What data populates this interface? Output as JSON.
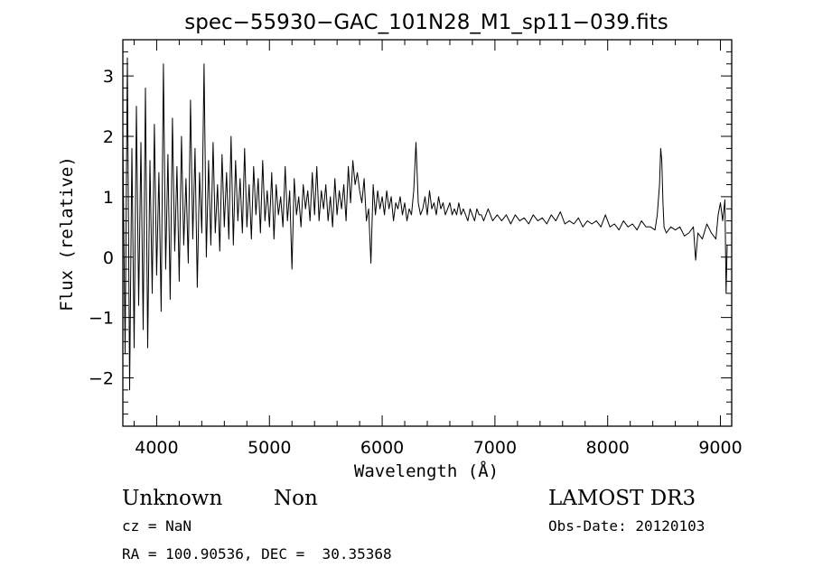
{
  "chart_data": {
    "type": "line",
    "title": "spec−55930−GAC_101N28_M1_sp11−039.fits",
    "xlabel": "Wavelength (Å)",
    "ylabel": "Flux (relative)",
    "xlim": [
      3700,
      9100
    ],
    "ylim": [
      -2.8,
      3.6
    ],
    "x_ticks": [
      4000,
      5000,
      6000,
      7000,
      8000,
      9000
    ],
    "y_ticks": [
      -2,
      -1,
      0,
      1,
      2,
      3
    ],
    "y_tick_labels": [
      "−2",
      "−1",
      "0",
      "1",
      "2",
      "3"
    ],
    "grid": false,
    "series": [
      {
        "name": "flux",
        "x": [
          3700,
          3720,
          3740,
          3760,
          3780,
          3800,
          3820,
          3840,
          3860,
          3880,
          3900,
          3920,
          3940,
          3960,
          3980,
          4000,
          4020,
          4040,
          4060,
          4080,
          4100,
          4120,
          4140,
          4160,
          4180,
          4200,
          4220,
          4240,
          4260,
          4280,
          4300,
          4320,
          4340,
          4360,
          4380,
          4400,
          4420,
          4440,
          4460,
          4480,
          4500,
          4520,
          4540,
          4560,
          4580,
          4600,
          4620,
          4640,
          4660,
          4680,
          4700,
          4720,
          4740,
          4760,
          4780,
          4800,
          4820,
          4840,
          4860,
          4880,
          4900,
          4920,
          4940,
          4960,
          4980,
          5000,
          5020,
          5040,
          5060,
          5080,
          5100,
          5120,
          5140,
          5160,
          5180,
          5200,
          5220,
          5240,
          5260,
          5280,
          5300,
          5320,
          5340,
          5360,
          5380,
          5400,
          5420,
          5440,
          5460,
          5480,
          5500,
          5520,
          5540,
          5560,
          5580,
          5600,
          5620,
          5640,
          5660,
          5680,
          5700,
          5720,
          5740,
          5760,
          5780,
          5800,
          5820,
          5840,
          5860,
          5880,
          5900,
          5920,
          5940,
          5960,
          5980,
          6000,
          6020,
          6040,
          6060,
          6080,
          6100,
          6120,
          6140,
          6160,
          6180,
          6200,
          6220,
          6240,
          6260,
          6280,
          6300,
          6320,
          6340,
          6360,
          6380,
          6400,
          6420,
          6440,
          6460,
          6480,
          6500,
          6520,
          6540,
          6560,
          6580,
          6600,
          6620,
          6640,
          6660,
          6680,
          6700,
          6720,
          6740,
          6760,
          6780,
          6800,
          6820,
          6840,
          6860,
          6880,
          6900,
          6940,
          6980,
          7020,
          7060,
          7100,
          7140,
          7180,
          7220,
          7260,
          7300,
          7340,
          7380,
          7420,
          7460,
          7500,
          7540,
          7580,
          7620,
          7660,
          7700,
          7740,
          7780,
          7820,
          7860,
          7900,
          7940,
          7980,
          8020,
          8060,
          8100,
          8140,
          8180,
          8220,
          8260,
          8300,
          8340,
          8380,
          8420,
          8440,
          8460,
          8470,
          8480,
          8490,
          8500,
          8520,
          8560,
          8600,
          8640,
          8680,
          8720,
          8760,
          8780,
          8800,
          8840,
          8880,
          8920,
          8960,
          8980,
          9000,
          9020,
          9040,
          9050,
          9060
        ],
        "values": [
          2.0,
          -1.6,
          3.3,
          -2.2,
          1.8,
          -1.5,
          2.5,
          -0.8,
          1.9,
          -1.2,
          2.8,
          -1.5,
          1.6,
          -0.6,
          2.2,
          -0.3,
          1.4,
          -0.9,
          3.2,
          -0.2,
          1.7,
          -0.7,
          2.3,
          0.1,
          1.5,
          -0.4,
          2.0,
          0.2,
          1.3,
          -0.1,
          2.6,
          0.3,
          1.8,
          -0.5,
          1.4,
          0.4,
          3.2,
          0.0,
          1.6,
          0.2,
          1.9,
          0.4,
          1.2,
          0.1,
          1.7,
          0.5,
          1.4,
          0.3,
          2.0,
          0.2,
          1.6,
          0.6,
          1.3,
          0.4,
          1.8,
          0.5,
          1.2,
          0.3,
          1.5,
          0.7,
          1.3,
          0.4,
          1.6,
          0.6,
          1.1,
          0.5,
          1.4,
          0.3,
          1.2,
          0.7,
          1.0,
          0.5,
          1.5,
          0.6,
          1.1,
          -0.2,
          1.3,
          0.7,
          1.0,
          0.5,
          1.2,
          0.8,
          1.1,
          0.6,
          1.4,
          0.7,
          1.5,
          0.6,
          1.1,
          0.8,
          1.2,
          0.6,
          1.0,
          0.5,
          1.3,
          0.7,
          1.1,
          0.8,
          1.2,
          0.6,
          1.5,
          0.9,
          1.6,
          1.2,
          1.4,
          1.1,
          0.9,
          1.3,
          0.6,
          0.8,
          -0.1,
          1.2,
          0.7,
          1.1,
          0.8,
          1.0,
          0.7,
          1.1,
          0.8,
          1.0,
          0.6,
          0.9,
          0.8,
          1.0,
          0.7,
          0.9,
          0.6,
          0.8,
          0.7,
          1.1,
          1.9,
          0.9,
          0.7,
          0.8,
          1.0,
          0.7,
          1.1,
          0.8,
          0.9,
          0.7,
          1.0,
          0.8,
          0.9,
          0.7,
          0.8,
          0.9,
          0.7,
          0.8,
          0.7,
          0.9,
          0.7,
          0.8,
          0.7,
          0.6,
          0.8,
          0.7,
          0.6,
          0.8,
          0.7,
          0.7,
          0.6,
          0.8,
          0.6,
          0.7,
          0.6,
          0.7,
          0.55,
          0.7,
          0.6,
          0.65,
          0.55,
          0.7,
          0.6,
          0.65,
          0.55,
          0.7,
          0.6,
          0.75,
          0.55,
          0.6,
          0.55,
          0.65,
          0.5,
          0.6,
          0.55,
          0.6,
          0.5,
          0.7,
          0.5,
          0.55,
          0.45,
          0.6,
          0.5,
          0.55,
          0.45,
          0.6,
          0.5,
          0.5,
          0.45,
          0.7,
          1.2,
          1.8,
          1.6,
          0.9,
          0.5,
          0.4,
          0.5,
          0.45,
          0.5,
          0.35,
          0.4,
          0.5,
          -0.05,
          0.4,
          0.3,
          0.55,
          0.4,
          0.3,
          0.7,
          0.9,
          0.6,
          0.95,
          -0.6,
          0.2
        ]
      }
    ]
  },
  "footer": {
    "object_type": "Unknown",
    "object_subclass": "Non",
    "redshift": "cz = NaN",
    "coordinates": "RA = 100.90536, DEC =  30.35368",
    "survey": "LAMOST DR3",
    "obs_date": "Obs-Date: 20120103"
  }
}
